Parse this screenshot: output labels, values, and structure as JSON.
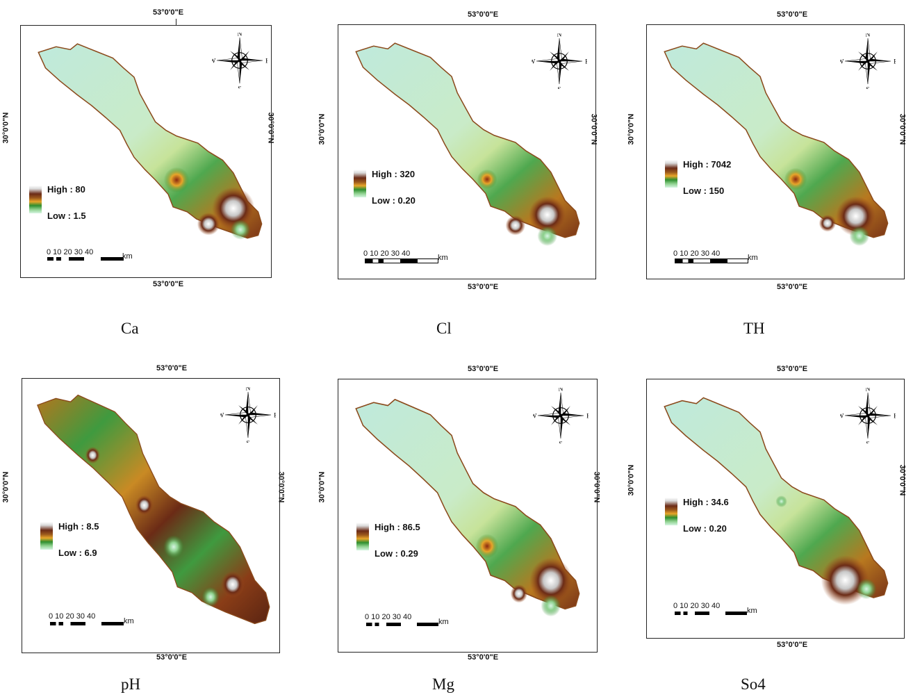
{
  "coords": {
    "lon": "53°0'0\"E",
    "lat": "30°0'0\"N"
  },
  "compass": {
    "n": "N",
    "s": "S",
    "e": "E",
    "w": "W"
  },
  "scalebar": {
    "ticks": "0  10  20  30  40",
    "unit": "km"
  },
  "panels": [
    {
      "caption": "Ca",
      "high": "High : 80",
      "low": "Low : 1.5"
    },
    {
      "caption": "Cl",
      "high": "High : 320",
      "low": "Low : 0.20"
    },
    {
      "caption": "TH",
      "high": "High : 7042",
      "low": "Low : 150"
    },
    {
      "caption": "pH",
      "high": "High : 8.5",
      "low": "Low : 6.9"
    },
    {
      "caption": "Mg",
      "high": "High : 86.5",
      "low": "Low : 0.29"
    },
    {
      "caption": "So4",
      "high": "High : 34.6",
      "low": "Low : 0.20"
    }
  ],
  "colors": {
    "outline": "#8b4a1c",
    "water_low": "#bfeadc",
    "green": "#2f8f2f",
    "brown": "#6b2b16",
    "orange": "#e8a52a"
  }
}
